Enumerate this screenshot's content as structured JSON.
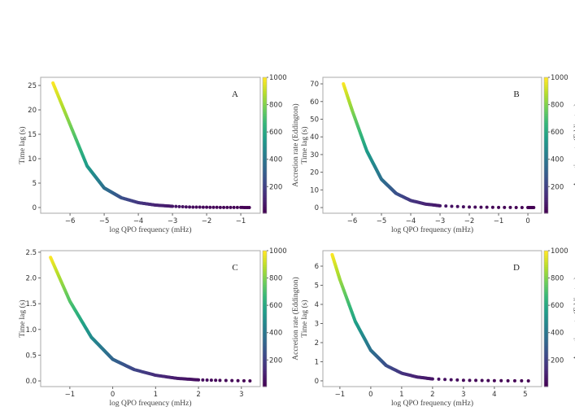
{
  "chart_data": [
    {
      "type": "scatter",
      "panel_label": "A",
      "xlabel": "log QPO frequency (mHz)",
      "ylabel": "Time lag (s)",
      "colorbar_label": "Accretion rate (Eddington)",
      "colorbar_ticks": [
        200,
        400,
        600,
        800,
        1000
      ],
      "colorbar_range": [
        5,
        1000
      ],
      "xticks": [
        -6,
        -5,
        -4,
        -3,
        -2,
        -1
      ],
      "yticks": [
        0,
        5,
        10,
        15,
        20,
        25
      ],
      "xlim": [
        -6.86,
        -0.43
      ],
      "ylim": [
        -1.17,
        26.67
      ],
      "x": [
        -6.5,
        -6,
        -5.5,
        -5,
        -4.5,
        -4,
        -3.5,
        -3,
        -2.5,
        -2,
        -1.5,
        -1,
        -0.75
      ],
      "y": [
        25.5,
        17,
        8.5,
        4,
        2,
        1,
        0.5,
        0.25,
        0.1,
        0.05,
        0.02,
        0.01,
        0
      ],
      "accretion_rate": [
        1000,
        800,
        550,
        380,
        260,
        170,
        110,
        70,
        40,
        25,
        15,
        8,
        5
      ]
    },
    {
      "type": "scatter",
      "panel_label": "B",
      "xlabel": "log QPO frequency (mHz)",
      "ylabel": "Time lag (s)",
      "colorbar_label": "Accretion rate (Eddington)",
      "colorbar_ticks": [
        200,
        400,
        600,
        800,
        1000
      ],
      "colorbar_range": [
        5,
        1000
      ],
      "xticks": [
        -6,
        -5,
        -4,
        -3,
        -2,
        -1,
        0
      ],
      "yticks": [
        0,
        10,
        20,
        30,
        40,
        50,
        60,
        70
      ],
      "xlim": [
        -7,
        0.47
      ],
      "ylim": [
        -3.2,
        73.7
      ],
      "x": [
        -6.3,
        -6,
        -5.5,
        -5,
        -4.5,
        -4,
        -3.5,
        -3,
        -2,
        -1,
        0,
        0.2
      ],
      "y": [
        70,
        55,
        32,
        16,
        8,
        4,
        2,
        1,
        0.3,
        0.1,
        0.02,
        0
      ],
      "accretion_rate": [
        1000,
        820,
        560,
        380,
        260,
        170,
        110,
        70,
        30,
        12,
        6,
        5
      ]
    },
    {
      "type": "scatter",
      "panel_label": "C",
      "xlabel": "log QPO frequency (mHz)",
      "ylabel": "Time lag (s)",
      "colorbar_label": "Accretion rate (Eddington)",
      "colorbar_ticks": [
        200,
        400,
        600,
        800,
        1000
      ],
      "colorbar_range": [
        5,
        1000
      ],
      "xticks": [
        -1,
        0,
        1,
        2,
        3
      ],
      "yticks": [
        0.0,
        0.5,
        1.0,
        1.5,
        2.0,
        2.5
      ],
      "ytick_labels": [
        "0.0",
        "0.5",
        "1.0",
        "1.5",
        "2.0",
        "2.5"
      ],
      "xlim": [
        -1.68,
        3.44
      ],
      "ylim": [
        -0.11,
        2.53
      ],
      "x": [
        -1.45,
        -1,
        -0.5,
        0,
        0.5,
        1,
        1.5,
        2,
        2.5,
        3.2
      ],
      "y": [
        2.4,
        1.55,
        0.85,
        0.42,
        0.22,
        0.11,
        0.05,
        0.02,
        0.01,
        0
      ],
      "accretion_rate": [
        1000,
        730,
        490,
        330,
        220,
        140,
        80,
        40,
        20,
        5
      ]
    },
    {
      "type": "scatter",
      "panel_label": "D",
      "xlabel": "log QPO frequency (mHz)",
      "ylabel": "Time lag (s)",
      "colorbar_label": "Accretion rate (Eddington)",
      "colorbar_ticks": [
        200,
        400,
        600,
        800,
        1000
      ],
      "colorbar_range": [
        5,
        1000
      ],
      "xticks": [
        -1,
        0,
        1,
        2,
        3,
        4,
        5
      ],
      "yticks": [
        0,
        1,
        2,
        3,
        4,
        5,
        6
      ],
      "xlim": [
        -1.55,
        5.53
      ],
      "ylim": [
        -0.3,
        6.81
      ],
      "x": [
        -1.25,
        -1,
        -0.5,
        0,
        0.5,
        1,
        1.5,
        2,
        3,
        4,
        5.1
      ],
      "y": [
        6.6,
        5.3,
        3.1,
        1.6,
        0.8,
        0.4,
        0.2,
        0.1,
        0.03,
        0.01,
        0
      ],
      "accretion_rate": [
        1000,
        850,
        580,
        380,
        250,
        160,
        100,
        60,
        25,
        10,
        5
      ]
    }
  ]
}
